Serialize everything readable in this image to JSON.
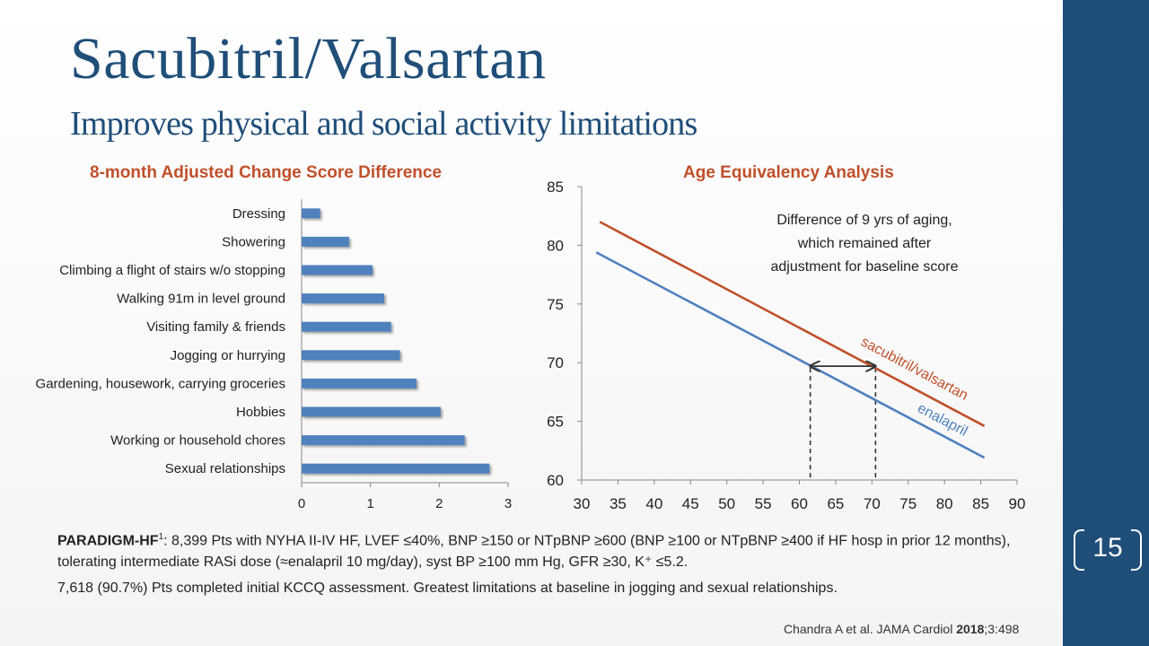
{
  "slide": {
    "title": "Sacubitril/Valsartan",
    "subtitle": "Improves physical and social activity limitations",
    "page_number": "15",
    "brand_color": "#1f4e79",
    "accent_color": "#c0502a"
  },
  "footnote": {
    "trial": "PARADIGM-HF",
    "sup": "1",
    "line1": ": 8,399 Pts with NYHA II-IV HF, LVEF ≤40%, BNP ≥150 or NTpBNP ≥600 (BNP ≥100 or NTpBNP ≥400 if HF hosp in prior 12 months), tolerating intermediate RASi dose (≈enalapril 10 mg/day), syst BP ≥100 mm Hg, GFR ≥30, K⁺ ≤5.2.",
    "line2": "7,618 (90.7%) Pts completed initial KCCQ assessment. Greatest limitations at baseline in jogging and sexual relationships."
  },
  "citation": {
    "text": "Chandra A et al. JAMA Cardiol ",
    "year": "2018",
    "rest": ";3:498"
  },
  "chart_data": [
    {
      "type": "bar",
      "orientation": "horizontal",
      "title": "8-month Adjusted Change Score Difference",
      "categories": [
        "Dressing",
        "Showering",
        "Climbing a flight of stairs w/o stopping",
        "Walking 91m in level ground",
        "Visiting family & friends",
        "Jogging or hurrying",
        "Gardening, housework, carrying groceries",
        "Hobbies",
        "Working or household chores",
        "Sexual relationships"
      ],
      "values": [
        0.27,
        0.69,
        1.03,
        1.2,
        1.3,
        1.43,
        1.67,
        2.02,
        2.37,
        2.73
      ],
      "xlim": [
        0,
        3
      ],
      "xticks": [
        "0",
        "1",
        "2",
        "3"
      ],
      "bar_color": "#4f81bd",
      "grid": false
    },
    {
      "type": "line",
      "title": "Age Equivalency Analysis",
      "xlim": [
        30,
        90
      ],
      "ylim": [
        60,
        85
      ],
      "xticks": [
        "30",
        "35",
        "40",
        "45",
        "50",
        "55",
        "60",
        "65",
        "70",
        "75",
        "80",
        "85",
        "90"
      ],
      "yticks": [
        "60",
        "65",
        "70",
        "75",
        "80",
        "85"
      ],
      "series": [
        {
          "name": "sacubitril/valsartan",
          "color": "#c0502a",
          "x": [
            32.5,
            85.5
          ],
          "y": [
            82,
            64.6
          ]
        },
        {
          "name": "enalapril",
          "color": "#4f81bd",
          "x": [
            32,
            85.5
          ],
          "y": [
            79.4,
            61.9
          ]
        }
      ],
      "annotation": "Difference of 9 yrs of aging, which remained after adjustment for baseline score",
      "arrow": {
        "x_from": 61.5,
        "x_to": 70.5,
        "y": 69.7
      },
      "dashed_x": [
        61.5,
        70.5
      ],
      "grid": false
    }
  ]
}
